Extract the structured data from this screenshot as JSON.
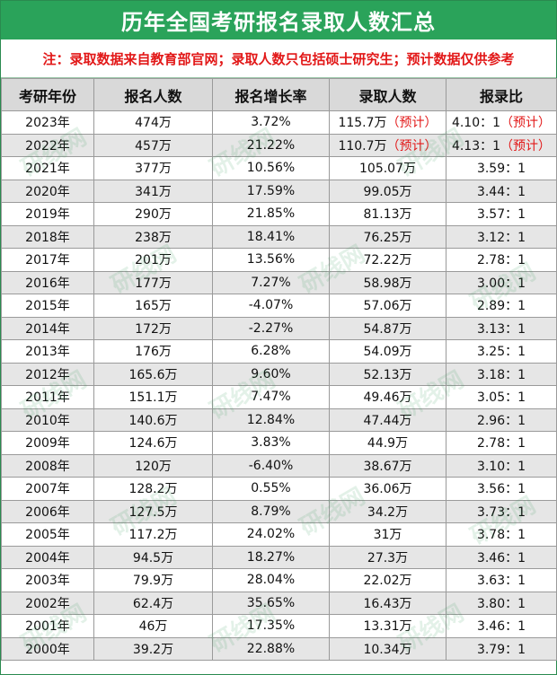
{
  "title": "历年全国考研报名录取人数汇总",
  "note": "注：录取数据来自教育部官网；录取人数只包括硕士研究生；预计数据仅供参考",
  "headers": [
    "考研年份",
    "报名人数",
    "报名增长率",
    "录取人数",
    "报录比"
  ],
  "estimate_label": "（预计）",
  "watermark": "研线网",
  "rows": [
    {
      "year": "2023年",
      "applicants": "474万",
      "growth": "3.72%",
      "admitted": "115.7万",
      "ratio": "4.10：1",
      "estimated": true
    },
    {
      "year": "2022年",
      "applicants": "457万",
      "growth": "21.22%",
      "admitted": "110.7万",
      "ratio": "4.13：1",
      "estimated": true
    },
    {
      "year": "2021年",
      "applicants": "377万",
      "growth": "10.56%",
      "admitted": "105.07万",
      "ratio": "3.59：1"
    },
    {
      "year": "2020年",
      "applicants": "341万",
      "growth": "17.59%",
      "admitted": "99.05万",
      "ratio": "3.44：1"
    },
    {
      "year": "2019年",
      "applicants": "290万",
      "growth": "21.85%",
      "admitted": "81.13万",
      "ratio": "3.57：1"
    },
    {
      "year": "2018年",
      "applicants": "238万",
      "growth": "18.41%",
      "admitted": "76.25万",
      "ratio": "3.12：1"
    },
    {
      "year": "2017年",
      "applicants": "201万",
      "growth": "13.56%",
      "admitted": "72.22万",
      "ratio": "2.78：1"
    },
    {
      "year": "2016年",
      "applicants": "177万",
      "growth": "7.27%",
      "admitted": "58.98万",
      "ratio": "3.00：1"
    },
    {
      "year": "2015年",
      "applicants": "165万",
      "growth": "-4.07%",
      "admitted": "57.06万",
      "ratio": "2.89：1"
    },
    {
      "year": "2014年",
      "applicants": "172万",
      "growth": "-2.27%",
      "admitted": "54.87万",
      "ratio": "3.13：1"
    },
    {
      "year": "2013年",
      "applicants": "176万",
      "growth": "6.28%",
      "admitted": "54.09万",
      "ratio": "3.25：1"
    },
    {
      "year": "2012年",
      "applicants": "165.6万",
      "growth": "9.60%",
      "admitted": "52.13万",
      "ratio": "3.18：1"
    },
    {
      "year": "2011年",
      "applicants": "151.1万",
      "growth": "7.47%",
      "admitted": "49.46万",
      "ratio": "3.05：1"
    },
    {
      "year": "2010年",
      "applicants": "140.6万",
      "growth": "12.84%",
      "admitted": "47.44万",
      "ratio": "2.96：1"
    },
    {
      "year": "2009年",
      "applicants": "124.6万",
      "growth": "3.83%",
      "admitted": "44.9万",
      "ratio": "2.78：1"
    },
    {
      "year": "2008年",
      "applicants": "120万",
      "growth": "-6.40%",
      "admitted": "38.67万",
      "ratio": "3.10：1"
    },
    {
      "year": "2007年",
      "applicants": "128.2万",
      "growth": "0.55%",
      "admitted": "36.06万",
      "ratio": "3.56：1"
    },
    {
      "year": "2006年",
      "applicants": "127.5万",
      "growth": "8.79%",
      "admitted": "34.2万",
      "ratio": "3.73：1"
    },
    {
      "year": "2005年",
      "applicants": "117.2万",
      "growth": "24.02%",
      "admitted": "31万",
      "ratio": "3.78：1"
    },
    {
      "year": "2004年",
      "applicants": "94.5万",
      "growth": "18.27%",
      "admitted": "27.3万",
      "ratio": "3.46：1"
    },
    {
      "year": "2003年",
      "applicants": "79.9万",
      "growth": "28.04%",
      "admitted": "22.02万",
      "ratio": "3.63：1"
    },
    {
      "year": "2002年",
      "applicants": "62.4万",
      "growth": "35.65%",
      "admitted": "16.43万",
      "ratio": "3.80：1"
    },
    {
      "year": "2001年",
      "applicants": "46万",
      "growth": "17.35%",
      "admitted": "13.31万",
      "ratio": "3.46：1"
    },
    {
      "year": "2000年",
      "applicants": "39.2万",
      "growth": "22.88%",
      "admitted": "10.34万",
      "ratio": "3.79：1"
    }
  ]
}
